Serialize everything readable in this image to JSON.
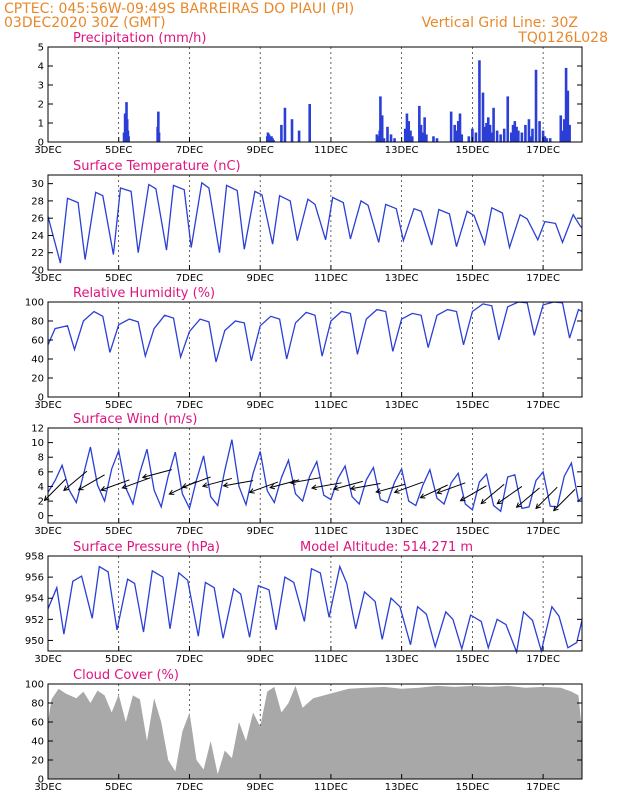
{
  "header": {
    "line1": "CPTEC:   045:56W-09:49S   BARREIRAS DO PIAUI (PI)",
    "line2": "03DEC2020 30Z (GMT)",
    "grid_note": "Vertical Grid Line: 30Z",
    "code": "TQ0126L028"
  },
  "colors": {
    "header": "#e8882a",
    "title": "#e0137f",
    "line": "#2b3fd6",
    "bar": "#2b3fd6",
    "cloud": "#a8a8a8",
    "vector": "#000000"
  },
  "x_axis": {
    "labels": [
      "3DEC",
      "5DEC",
      "7DEC",
      "9DEC",
      "11DEC",
      "13DEC",
      "15DEC",
      "17DEC"
    ],
    "label_days": [
      0,
      2,
      4,
      6,
      8,
      10,
      12,
      14
    ],
    "range_days": [
      0,
      15.1
    ]
  },
  "chart_data": [
    {
      "id": "precip",
      "type": "bar",
      "title": "Precipitation (mm/h)",
      "ylim": [
        0,
        5
      ],
      "yticks": [
        0,
        1,
        2,
        3,
        4,
        5
      ],
      "x_days": [
        2.15,
        2.18,
        2.22,
        2.24,
        2.26,
        2.28,
        3.1,
        3.12,
        3.14,
        6.2,
        6.22,
        6.25,
        6.28,
        6.3,
        6.32,
        6.35,
        6.38,
        6.6,
        6.7,
        6.9,
        7.1,
        7.4,
        9.3,
        9.32,
        9.35,
        9.38,
        9.4,
        9.42,
        9.45,
        9.5,
        9.6,
        9.7,
        9.8,
        10.1,
        10.15,
        10.2,
        10.25,
        10.3,
        10.5,
        10.55,
        10.6,
        10.65,
        10.7,
        10.9,
        11.0,
        11.4,
        11.5,
        11.55,
        11.6,
        11.65,
        11.7,
        11.9,
        12.0,
        12.1,
        12.2,
        12.3,
        12.35,
        12.4,
        12.45,
        12.5,
        12.55,
        12.6,
        12.7,
        12.8,
        12.9,
        13.0,
        13.1,
        13.15,
        13.2,
        13.25,
        13.3,
        13.4,
        13.5,
        13.6,
        13.65,
        13.7,
        13.8,
        13.9,
        14.0,
        14.05,
        14.1,
        14.2,
        14.5,
        14.55,
        14.6,
        14.65,
        14.7,
        14.75
      ],
      "values": [
        0.5,
        1.5,
        2.1,
        1.2,
        0.6,
        0.3,
        0.8,
        1.6,
        0.5,
        0.3,
        0.5,
        0.4,
        0.3,
        0.2,
        0.3,
        0.2,
        0.1,
        0.9,
        1.8,
        1.2,
        0.6,
        2.0,
        0.4,
        0.3,
        0.2,
        0.6,
        2.4,
        0.9,
        1.4,
        0.2,
        0.8,
        0.4,
        0.2,
        0.7,
        1.5,
        1.1,
        0.6,
        0.3,
        1.9,
        0.9,
        0.5,
        1.3,
        0.4,
        0.3,
        0.2,
        1.6,
        0.9,
        0.6,
        1.1,
        1.5,
        0.4,
        0.3,
        0.7,
        0.5,
        4.3,
        2.6,
        0.8,
        1.0,
        1.3,
        0.9,
        0.5,
        1.8,
        0.6,
        0.4,
        0.7,
        2.4,
        0.5,
        0.9,
        1.1,
        0.8,
        0.6,
        0.5,
        0.9,
        1.2,
        0.3,
        0.7,
        3.8,
        1.1,
        0.6,
        0.3,
        0.2,
        0.2,
        1.4,
        0.6,
        1.2,
        3.9,
        2.7,
        0.9
      ]
    },
    {
      "id": "temp",
      "type": "line",
      "title": "Surface Temperature (nC)",
      "ylim": [
        20,
        31
      ],
      "yticks": [
        20,
        22,
        24,
        26,
        28,
        30
      ],
      "x_days": [
        0.0,
        0.35,
        0.55,
        0.85,
        1.05,
        1.35,
        1.55,
        1.85,
        2.05,
        2.35,
        2.55,
        2.85,
        3.05,
        3.35,
        3.55,
        3.85,
        4.05,
        4.35,
        4.55,
        4.85,
        5.05,
        5.35,
        5.55,
        5.85,
        6.05,
        6.35,
        6.55,
        6.85,
        7.05,
        7.35,
        7.55,
        7.85,
        8.05,
        8.35,
        8.55,
        8.85,
        9.05,
        9.35,
        9.55,
        9.85,
        10.05,
        10.35,
        10.55,
        10.85,
        11.05,
        11.35,
        11.55,
        11.85,
        12.05,
        12.35,
        12.55,
        12.85,
        13.05,
        13.35,
        13.55,
        13.85,
        14.05,
        14.35,
        14.55,
        14.85,
        15.05,
        15.1
      ],
      "values": [
        26.2,
        20.8,
        28.3,
        27.8,
        21.2,
        29.0,
        28.6,
        21.8,
        29.5,
        29.1,
        22.0,
        29.9,
        29.4,
        22.3,
        29.8,
        29.3,
        22.6,
        30.1,
        29.5,
        22.0,
        29.8,
        29.2,
        22.4,
        29.1,
        28.7,
        23.0,
        28.6,
        28.0,
        23.4,
        28.2,
        27.6,
        23.5,
        28.4,
        27.8,
        23.6,
        28.0,
        27.5,
        23.2,
        27.6,
        27.1,
        23.4,
        27.1,
        26.8,
        22.9,
        27.0,
        26.5,
        22.7,
        26.8,
        26.3,
        23.0,
        27.2,
        26.6,
        22.6,
        26.4,
        25.9,
        23.5,
        25.6,
        25.4,
        23.2,
        26.4,
        25.1,
        24.9
      ]
    },
    {
      "id": "rh",
      "type": "line",
      "title": "Relative Humidity (%)",
      "ylim": [
        0,
        100
      ],
      "yticks": [
        0,
        20,
        40,
        60,
        80,
        100
      ],
      "x_days": [
        0.0,
        0.2,
        0.55,
        0.75,
        1.0,
        1.3,
        1.55,
        1.75,
        2.0,
        2.3,
        2.55,
        2.75,
        3.0,
        3.3,
        3.55,
        3.75,
        4.0,
        4.3,
        4.55,
        4.75,
        5.0,
        5.3,
        5.55,
        5.75,
        6.0,
        6.3,
        6.55,
        6.75,
        7.0,
        7.3,
        7.55,
        7.75,
        8.0,
        8.3,
        8.55,
        8.75,
        9.0,
        9.3,
        9.55,
        9.75,
        10.0,
        10.3,
        10.55,
        10.75,
        11.0,
        11.3,
        11.55,
        11.75,
        12.0,
        12.3,
        12.55,
        12.75,
        13.0,
        13.3,
        13.55,
        13.75,
        14.0,
        14.3,
        14.55,
        14.75,
        15.0,
        15.1
      ],
      "values": [
        55,
        72,
        75,
        50,
        80,
        90,
        85,
        47,
        76,
        82,
        79,
        43,
        72,
        86,
        83,
        42,
        69,
        82,
        79,
        37,
        70,
        80,
        78,
        38,
        75,
        85,
        82,
        40,
        78,
        89,
        86,
        43,
        80,
        90,
        88,
        45,
        82,
        92,
        90,
        48,
        82,
        88,
        86,
        52,
        86,
        92,
        90,
        55,
        90,
        98,
        96,
        60,
        95,
        100,
        99,
        65,
        97,
        100,
        99,
        62,
        92,
        90
      ]
    },
    {
      "id": "wind",
      "type": "line",
      "title": "Surface Wind (m/s)",
      "ylim": [
        -1,
        12
      ],
      "yticks": [
        0,
        2,
        4,
        6,
        8,
        10,
        12
      ],
      "x_days": [
        0.0,
        0.2,
        0.4,
        0.6,
        0.8,
        1.0,
        1.2,
        1.4,
        1.6,
        1.8,
        2.0,
        2.2,
        2.4,
        2.6,
        2.8,
        3.0,
        3.2,
        3.4,
        3.6,
        3.8,
        4.0,
        4.2,
        4.4,
        4.6,
        4.8,
        5.0,
        5.2,
        5.4,
        5.6,
        5.8,
        6.0,
        6.2,
        6.4,
        6.6,
        6.8,
        7.0,
        7.2,
        7.4,
        7.6,
        7.8,
        8.0,
        8.2,
        8.4,
        8.6,
        8.8,
        9.0,
        9.2,
        9.4,
        9.6,
        9.8,
        10.0,
        10.2,
        10.4,
        10.6,
        10.8,
        11.0,
        11.2,
        11.4,
        11.6,
        11.8,
        12.0,
        12.2,
        12.4,
        12.6,
        12.8,
        13.0,
        13.2,
        13.4,
        13.6,
        13.8,
        14.0,
        14.2,
        14.4,
        14.6,
        14.8,
        15.0,
        15.1
      ],
      "values": [
        3.2,
        4.8,
        6.9,
        3.5,
        1.8,
        5.6,
        9.4,
        4.2,
        2.0,
        6.4,
        8.9,
        3.8,
        1.6,
        5.9,
        9.1,
        3.5,
        1.2,
        5.4,
        8.7,
        3.0,
        1.0,
        4.9,
        8.2,
        2.6,
        1.4,
        6.2,
        10.4,
        4.0,
        1.5,
        5.8,
        8.8,
        3.4,
        1.8,
        5.2,
        7.6,
        3.0,
        2.0,
        5.4,
        7.4,
        2.8,
        2.2,
        5.1,
        6.8,
        2.6,
        1.6,
        4.9,
        6.6,
        2.2,
        1.8,
        4.6,
        6.4,
        2.0,
        1.4,
        4.2,
        6.3,
        2.4,
        1.6,
        4.5,
        5.8,
        1.6,
        0.8,
        4.6,
        5.7,
        1.4,
        0.6,
        5.3,
        5.6,
        1.0,
        1.2,
        4.8,
        6.0,
        1.3,
        1.2,
        5.4,
        7.2,
        2.0,
        2.5
      ],
      "vector_days": [
        0.5,
        1.1,
        1.6,
        2.3,
        2.9,
        3.5,
        4.2,
        4.6,
        5.2,
        5.8,
        6.5,
        7.1,
        7.7,
        8.3,
        8.9,
        9.4,
        10.1,
        10.6,
        11.3,
        11.8,
        12.4,
        12.9,
        13.4,
        13.9,
        14.4,
        14.9
      ],
      "vector_speeds": [
        5.0,
        6.1,
        5.6,
        4.9,
        5.2,
        6.3,
        4.7,
        5.3,
        5.1,
        4.8,
        4.6,
        4.9,
        5.2,
        4.5,
        4.7,
        4.4,
        4.3,
        4.6,
        4.2,
        4.5,
        4.1,
        4.3,
        4.0,
        3.8,
        3.9,
        3.6
      ],
      "vector_dirs_deg": [
        45,
        40,
        30,
        20,
        20,
        15,
        25,
        20,
        15,
        10,
        20,
        15,
        10,
        10,
        15,
        10,
        15,
        20,
        25,
        20,
        30,
        40,
        35,
        40,
        45,
        45
      ]
    },
    {
      "id": "pressure",
      "type": "line",
      "title": "Surface Pressure (hPa)",
      "annotation": "Model Altitude: 514.271 m",
      "ylim": [
        949,
        958
      ],
      "yticks": [
        950,
        952,
        954,
        956,
        958
      ],
      "x_days": [
        0.0,
        0.25,
        0.45,
        0.7,
        0.95,
        1.25,
        1.45,
        1.7,
        1.95,
        2.25,
        2.45,
        2.7,
        2.95,
        3.25,
        3.45,
        3.7,
        3.95,
        4.25,
        4.45,
        4.7,
        4.95,
        5.25,
        5.45,
        5.7,
        5.95,
        6.25,
        6.45,
        6.7,
        6.95,
        7.25,
        7.45,
        7.7,
        7.95,
        8.25,
        8.45,
        8.7,
        8.95,
        9.25,
        9.45,
        9.7,
        9.95,
        10.25,
        10.45,
        10.7,
        10.95,
        11.25,
        11.45,
        11.7,
        11.95,
        12.25,
        12.45,
        12.7,
        12.95,
        13.25,
        13.45,
        13.7,
        13.95,
        14.25,
        14.45,
        14.7,
        14.95,
        15.1
      ],
      "values": [
        953.0,
        955.0,
        950.6,
        955.6,
        956.1,
        952.1,
        957.0,
        956.5,
        951.0,
        955.8,
        955.4,
        950.8,
        956.6,
        956.0,
        951.1,
        956.4,
        955.7,
        950.4,
        955.5,
        955.0,
        950.2,
        954.9,
        954.4,
        950.3,
        955.2,
        954.8,
        951.0,
        956.0,
        955.5,
        951.8,
        956.8,
        956.4,
        952.2,
        957.0,
        955.4,
        951.1,
        954.6,
        953.7,
        950.1,
        954.0,
        953.2,
        949.6,
        953.2,
        952.5,
        949.4,
        952.7,
        952.0,
        949.2,
        952.4,
        951.8,
        949.3,
        952.0,
        951.5,
        948.9,
        952.7,
        951.9,
        949.0,
        953.2,
        952.3,
        949.3,
        949.8,
        951.9
      ]
    },
    {
      "id": "cloud",
      "type": "area",
      "title": "Cloud Cover (%)",
      "ylim": [
        0,
        100
      ],
      "yticks": [
        0,
        20,
        40,
        60,
        80,
        100
      ],
      "x_days": [
        0.0,
        0.1,
        0.3,
        0.5,
        0.8,
        1.0,
        1.2,
        1.4,
        1.6,
        1.8,
        2.0,
        2.2,
        2.4,
        2.6,
        2.8,
        3.0,
        3.2,
        3.4,
        3.6,
        3.8,
        4.0,
        4.2,
        4.4,
        4.6,
        4.8,
        5.0,
        5.2,
        5.4,
        5.6,
        5.8,
        6.0,
        6.2,
        6.4,
        6.6,
        6.8,
        7.0,
        7.2,
        7.5,
        8.0,
        8.5,
        9.0,
        9.5,
        10.0,
        10.5,
        11.0,
        11.5,
        12.0,
        12.5,
        13.0,
        13.5,
        14.0,
        14.5,
        14.8,
        15.0,
        15.1
      ],
      "values": [
        60,
        84,
        95,
        90,
        85,
        92,
        80,
        93,
        88,
        70,
        89,
        60,
        88,
        84,
        40,
        85,
        60,
        20,
        8,
        50,
        70,
        20,
        10,
        40,
        5,
        30,
        22,
        60,
        40,
        70,
        55,
        92,
        97,
        70,
        80,
        98,
        75,
        85,
        90,
        95,
        96,
        97,
        95,
        96,
        98,
        97,
        98,
        97,
        98,
        96,
        97,
        96,
        92,
        88,
        50
      ]
    }
  ]
}
